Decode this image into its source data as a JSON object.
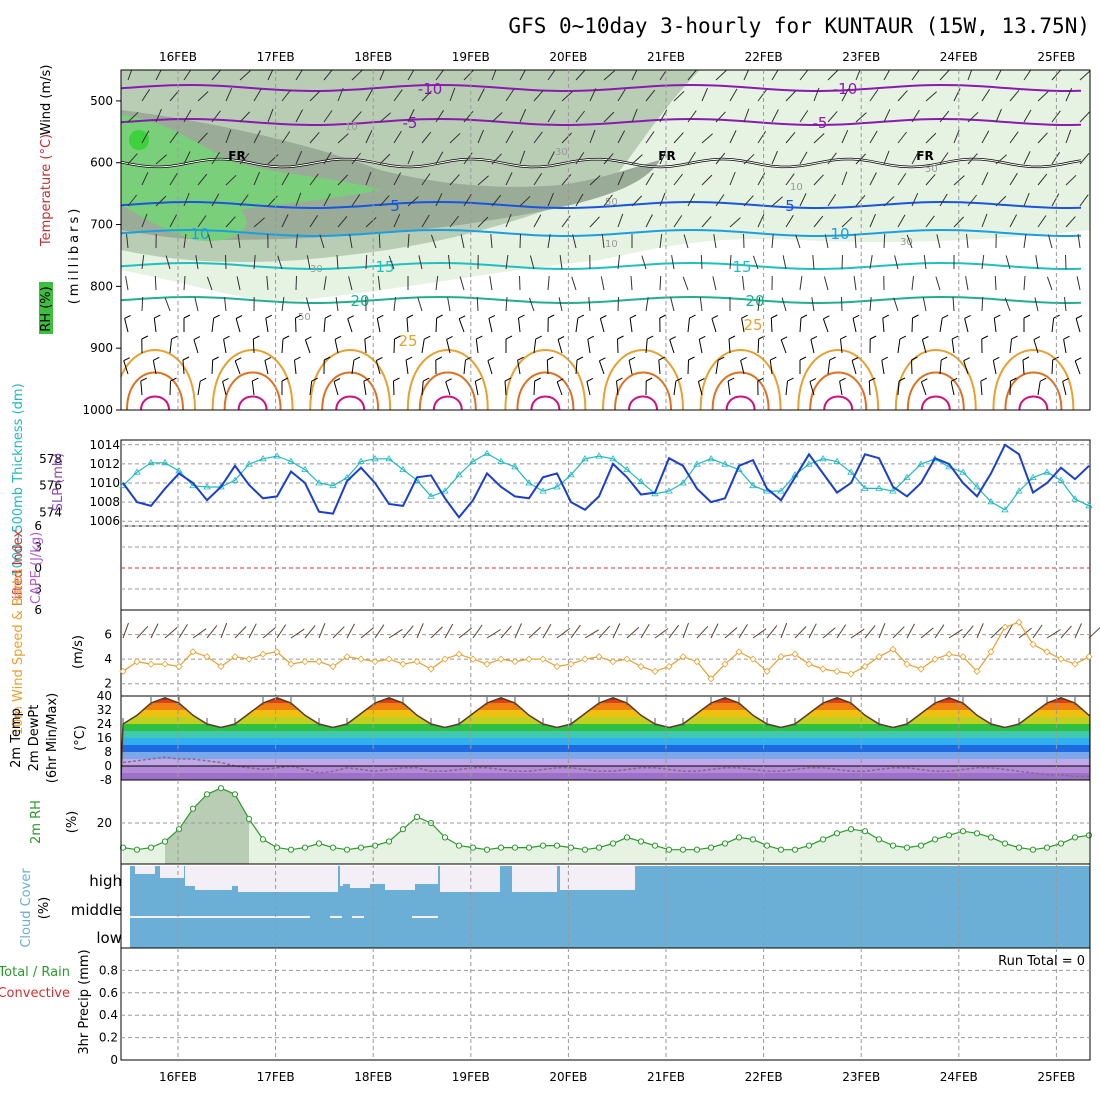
{
  "title": "GFS 0~10day 3-hourly for KUNTAUR (15W, 13.75N)",
  "dates": [
    "16FEB",
    "17FEB",
    "18FEB",
    "19FEB",
    "20FEB",
    "21FEB",
    "22FEB",
    "23FEB",
    "24FEB",
    "25FEB"
  ],
  "labels": {
    "p1_rh": "RH (%)",
    "p1_temp": "Temperature (°C)",
    "p1_wind": "Wind (m/s)",
    "p1_units": "(millibars)",
    "p2_thick": "1000~500mb Thickness (dm)",
    "p2_slp": "SLP (mb)",
    "p3_li": "Lifted Index",
    "p3_cape": "CAPE (J/kg)",
    "p4_title": "10m Wind Speed & Barbs",
    "p4_units": "(m/s)",
    "p5_temp": "2m Temp",
    "p5_dew": "2m DewPt",
    "p5_minmax": "(6hr Min/Max)",
    "p5_units": "(°C)",
    "p6_rh": "2m RH",
    "p6_units": "(%)",
    "p7_cloud": "Cloud Cover",
    "p7_units": "(%)",
    "p7_high": "high",
    "p7_middle": "middle",
    "p7_low": "low",
    "p8_total": "Total / Rain",
    "p8_conv": "Convective",
    "p8_units": "3hr Precip (mm)",
    "run_total": "Run Total = 0",
    "fr": "FR"
  },
  "colors": {
    "thickness": "#20b8c0",
    "slp": "#1a3fd0",
    "wind": "#e8a030",
    "rh": "#2a9a2a",
    "cloud": "#6baed6",
    "cloud_gap": "#f4eef6",
    "dewpt": "#8a6a88",
    "temp_line": "#5a3a2a"
  },
  "chart_data": [
    {
      "type": "heatmap",
      "name": "pressure-level cross section",
      "ylabel": "(millibars)",
      "yticks": [
        500,
        600,
        700,
        800,
        900,
        1000
      ],
      "ylim": [
        1000,
        450
      ],
      "temperature_labels": [
        "-10",
        "-5",
        "5",
        "10",
        "15",
        "20",
        "25"
      ],
      "rh_labels": [
        "10",
        "30",
        "50"
      ],
      "freezing_label": "FR"
    },
    {
      "type": "line",
      "name": "thickness and slp",
      "ylabel_left": "1000~500mb Thickness (dm)",
      "ylabel_right": "SLP (mb)",
      "yticks_left": [
        574,
        576,
        578
      ],
      "yticks_right": [
        1006,
        1008,
        1010,
        1012,
        1014
      ],
      "ylim_right": [
        1005.5,
        1014.5
      ],
      "ylim_left": [
        573,
        579.4
      ],
      "series": [
        {
          "name": "Thickness",
          "values": [
            576.0,
            577.0,
            577.7,
            577.7,
            577.1,
            576.0,
            575.9,
            575.9,
            576.4,
            577.6,
            578.0,
            578.2,
            577.8,
            577.2,
            576.2,
            576.0,
            576.6,
            577.8,
            578.0,
            578.0,
            577.2,
            576.4,
            575.2,
            575.6,
            576.8,
            577.8,
            578.4,
            577.8,
            577.4,
            576.2,
            575.6,
            575.9,
            576.8,
            578.0,
            578.2,
            578.0,
            577.2,
            576.3,
            575.4,
            575.6,
            576.2,
            577.6,
            578.0,
            577.6,
            577.2,
            576.0,
            575.6,
            575.6,
            576.8,
            577.6,
            578.0,
            577.8,
            577.0,
            575.8,
            575.8,
            575.6,
            576.6,
            577.6,
            578.0,
            577.4,
            577.0,
            575.9,
            574.8,
            574.2,
            575.6,
            576.6,
            577.0,
            576.4,
            575.0,
            574.5
          ]
        },
        {
          "name": "SLP",
          "values": [
            1010.0,
            1008.0,
            1007.6,
            1009.4,
            1011.0,
            1010.0,
            1008.2,
            1009.6,
            1011.8,
            1009.8,
            1008.4,
            1008.6,
            1011.2,
            1010.0,
            1007.0,
            1006.8,
            1010.2,
            1011.6,
            1010.0,
            1007.8,
            1007.6,
            1010.6,
            1010.8,
            1008.4,
            1006.4,
            1008.2,
            1011.0,
            1009.6,
            1008.6,
            1008.4,
            1010.6,
            1011.0,
            1008.0,
            1007.2,
            1008.6,
            1012.0,
            1010.6,
            1008.8,
            1009.0,
            1012.6,
            1011.8,
            1009.4,
            1008.0,
            1008.4,
            1011.8,
            1012.4,
            1009.4,
            1008.2,
            1010.6,
            1013.0,
            1011.0,
            1009.0,
            1010.0,
            1013.0,
            1012.6,
            1009.6,
            1008.6,
            1010.0,
            1012.6,
            1012.0,
            1010.0,
            1008.6,
            1011.0,
            1014.0,
            1013.0,
            1009.0,
            1010.0,
            1011.6,
            1010.4,
            1011.8
          ]
        }
      ]
    },
    {
      "type": "line",
      "name": "lifted index",
      "yticks": [
        6,
        3,
        0,
        -3,
        -6
      ],
      "ytick_labels": [
        "6",
        "3",
        "0",
        "3",
        "6"
      ],
      "ylim": [
        -6,
        6
      ]
    },
    {
      "type": "line",
      "name": "10m wind speed",
      "ylabel": "10m Wind Speed & Barbs (m/s)",
      "yticks": [
        2,
        4,
        6
      ],
      "ylim": [
        1,
        8
      ],
      "values": [
        3.0,
        3.8,
        3.6,
        3.6,
        3.4,
        4.6,
        4.2,
        3.4,
        4.2,
        4.0,
        4.4,
        4.6,
        3.6,
        3.8,
        3.8,
        3.4,
        4.2,
        4.0,
        3.8,
        4.0,
        3.6,
        3.8,
        3.2,
        4.0,
        4.4,
        4.0,
        3.6,
        4.0,
        3.8,
        4.0,
        4.0,
        3.4,
        3.6,
        4.0,
        4.2,
        3.8,
        4.0,
        3.4,
        3.0,
        3.4,
        4.2,
        3.8,
        2.4,
        3.6,
        4.6,
        4.0,
        3.0,
        4.2,
        4.4,
        3.6,
        3.2,
        3.0,
        2.8,
        3.4,
        4.2,
        4.8,
        3.6,
        3.2,
        4.0,
        4.4,
        4.2,
        3.0,
        4.6,
        6.6,
        7.0,
        5.2,
        4.6,
        4.0,
        3.6,
        4.2
      ]
    },
    {
      "type": "area",
      "name": "2m temperature and dewpoint",
      "ylabel": "2m Temp / 2m DewPt (6hr Min/Max) (°C)",
      "yticks": [
        40,
        32,
        24,
        16,
        8,
        0,
        -8
      ],
      "ylim": [
        -8,
        40
      ],
      "series": [
        {
          "name": "2m Temp",
          "values": [
            24,
            29,
            36,
            39,
            36,
            29,
            24,
            22,
            24,
            30,
            36,
            39,
            36,
            29,
            24,
            22,
            24,
            30,
            36,
            39,
            36,
            29,
            24,
            22,
            24,
            30,
            36,
            39,
            36,
            29,
            24,
            22,
            24,
            30,
            36,
            39,
            36,
            29,
            24,
            22,
            24,
            30,
            36,
            39,
            36,
            29,
            24,
            22,
            24,
            30,
            36,
            39,
            36,
            29,
            24,
            22,
            24,
            30,
            36,
            39,
            36,
            29,
            24,
            22,
            24,
            30,
            36,
            39,
            36,
            29
          ]
        },
        {
          "name": "2m DewPt",
          "values": [
            2,
            3,
            4,
            5,
            4,
            4,
            3,
            2,
            0,
            -1,
            -2,
            -1,
            0,
            -2,
            -4,
            -3,
            -1,
            -2,
            -3,
            -2,
            -1,
            -1,
            -3,
            -3,
            -2,
            -1,
            -1,
            -2,
            -3,
            -3,
            -2,
            -1,
            -1,
            -2,
            -3,
            -3,
            -2,
            -1,
            -1,
            -2,
            -3,
            -3,
            -2,
            -1,
            -1,
            -2,
            -3,
            -3,
            -2,
            -1,
            -1,
            -2,
            -3,
            -3,
            -2,
            -1,
            -1,
            -2,
            -3,
            -3,
            -2,
            -1,
            -1,
            -2,
            -3,
            -4,
            -5,
            -5,
            -6,
            -6
          ]
        }
      ]
    },
    {
      "type": "area",
      "name": "2m relative humidity",
      "ylabel": "2m RH (%)",
      "yticks": [
        20
      ],
      "ylim": [
        0,
        41
      ],
      "values": [
        8,
        7,
        8,
        11,
        17,
        27,
        34,
        37,
        34,
        22,
        12,
        8,
        7,
        8,
        10,
        8,
        7,
        8,
        9,
        11,
        17,
        23,
        20,
        13,
        9,
        8,
        7,
        8,
        8,
        8,
        9,
        9,
        8,
        7,
        8,
        10,
        13,
        11,
        9,
        7,
        7,
        7,
        8,
        10,
        13,
        12,
        9,
        7,
        7,
        9,
        12,
        15,
        17,
        16,
        12,
        9,
        8,
        9,
        12,
        14,
        16,
        15,
        13,
        10,
        8,
        7,
        8,
        10,
        13,
        14
      ]
    },
    {
      "type": "bar",
      "name": "cloud cover",
      "categories": [
        "high",
        "middle",
        "low"
      ],
      "ylabel": "Cloud Cover (%)"
    },
    {
      "type": "bar",
      "name": "3hr precipitation",
      "ylabel": "3hr Precip (mm)",
      "yticks": [
        0,
        0.2,
        0.4,
        0.6,
        0.8
      ],
      "ylim": [
        0,
        1.0
      ],
      "values": [],
      "annotation": "Run Total = 0"
    }
  ]
}
